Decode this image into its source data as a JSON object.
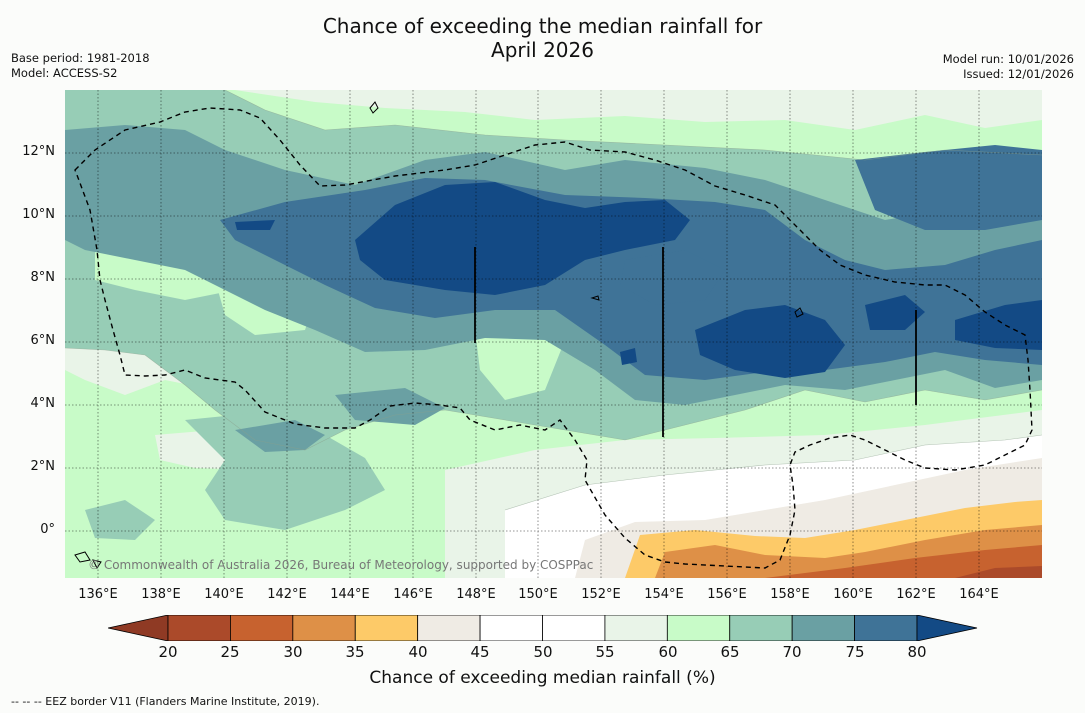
{
  "title_line1": "Chance of exceeding the median rainfall for",
  "title_line2": "April 2026",
  "base_period": "Base period: 1981-2018",
  "model": "Model: ACCESS-S2",
  "model_run": "Model run: 10/01/2026",
  "issued": "Issued: 12/01/2026",
  "copyright": "© Commonwealth of Australia 2026, Bureau of Meteorology, supported by COSPPac",
  "lat_labels": [
    "12°N",
    "10°N",
    "8°N",
    "6°N",
    "4°N",
    "2°N",
    "0°"
  ],
  "lon_labels": [
    "136°E",
    "138°E",
    "140°E",
    "142°E",
    "144°E",
    "146°E",
    "148°E",
    "150°E",
    "152°E",
    "154°E",
    "156°E",
    "158°E",
    "160°E",
    "162°E",
    "164°E"
  ],
  "colorbar": {
    "ticks": [
      "20",
      "25",
      "30",
      "35",
      "40",
      "45",
      "50",
      "55",
      "60",
      "65",
      "70",
      "75",
      "80"
    ],
    "colors": [
      "#ab4a2a",
      "#c7622f",
      "#de9047",
      "#fdca68",
      "#efebe4",
      "#ffffff",
      "#ffffff",
      "#e9f4e8",
      "#c8fbc8",
      "#97cdb6",
      "#6aa0a3",
      "#3f7397"
    ],
    "low_color": "#8f3a24",
    "high_color": "#134a85",
    "label": "Chance of exceeding median rainfall (%)"
  },
  "footer": "-- -- -- EEZ border V11 (Flanders Marine Institute, 2019).",
  "map_colors": {
    "c40": "#efebe4",
    "c55": "#e9f4e8",
    "c60": "#c8fbc8",
    "c65": "#97cdb6",
    "c70": "#6aa0a3",
    "c75": "#3f7397",
    "c80": "#134a85",
    "c35": "#fdca68",
    "c30": "#de9047",
    "c25": "#c7622f",
    "c20": "#ab4a2a"
  }
}
